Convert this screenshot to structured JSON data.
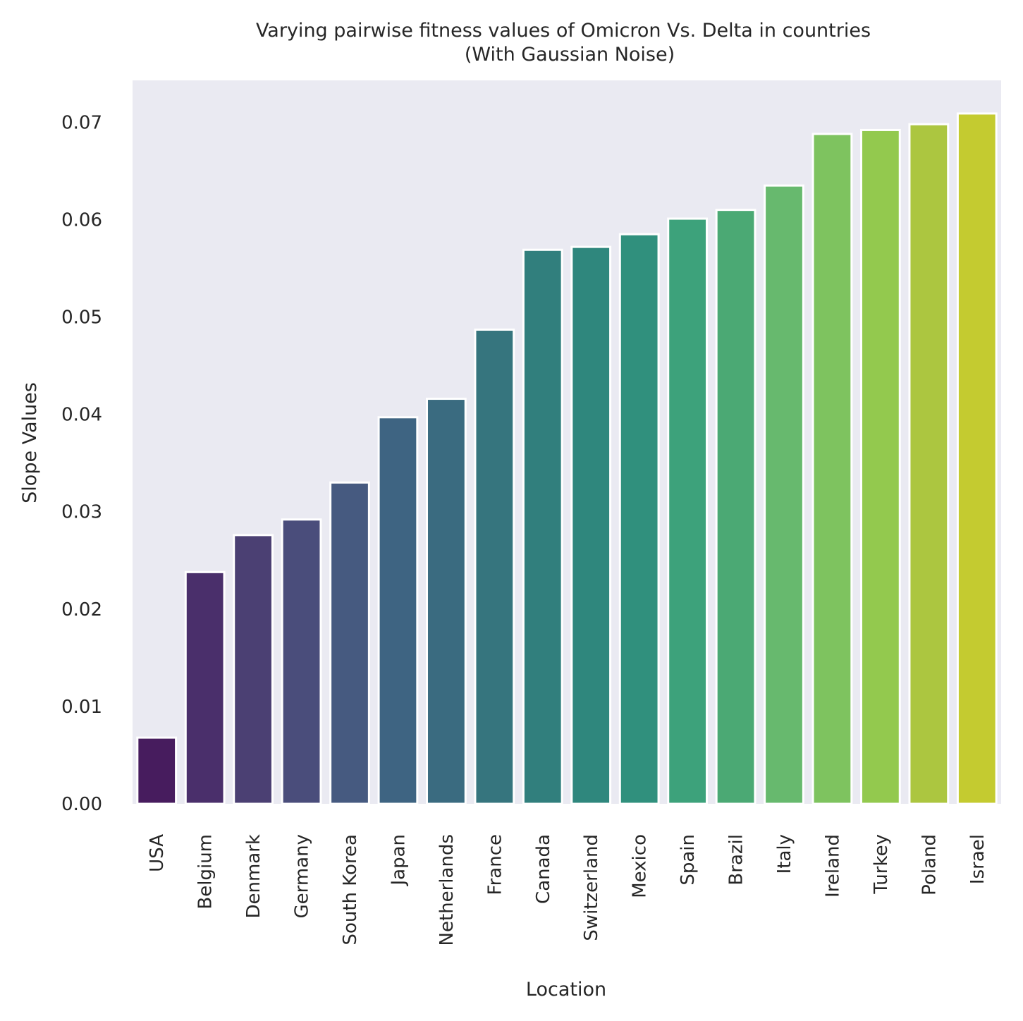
{
  "chart_data": {
    "type": "bar",
    "title": [
      "Varying pairwise fitness values of Omicron Vs. Delta in countries",
      "(With Gaussian Noise)"
    ],
    "xlabel": "Location",
    "ylabel": "Slope Values",
    "categories": [
      "USA",
      "Belgium",
      "Denmark",
      "Germany",
      "South Korea",
      "Japan",
      "Netherlands",
      "France",
      "Canada",
      "Switzerland",
      "Mexico",
      "Spain",
      "Brazil",
      "Italy",
      "Ireland",
      "Turkey",
      "Poland",
      "Israel"
    ],
    "values": [
      0.0068,
      0.0238,
      0.0276,
      0.0292,
      0.033,
      0.0397,
      0.0416,
      0.0487,
      0.0569,
      0.0572,
      0.0585,
      0.0601,
      0.061,
      0.0635,
      0.0688,
      0.0692,
      0.0698,
      0.0709
    ],
    "colors": [
      "#471c5e",
      "#4a2f6b",
      "#4b4073",
      "#4a4d7b",
      "#465a80",
      "#3e6482",
      "#3a6b80",
      "#36757e",
      "#317f7d",
      "#2f877d",
      "#30907d",
      "#3da27b",
      "#4ba974",
      "#67b96e",
      "#7ec35f",
      "#93c94e",
      "#acc640",
      "#c4cb30"
    ],
    "y_ticks": [
      "0.00",
      "0.01",
      "0.02",
      "0.03",
      "0.04",
      "0.05",
      "0.06",
      "0.07"
    ],
    "ylim": [
      0,
      0.0743
    ],
    "grid": false,
    "background": "#eaeaf2",
    "bar_edge_color": "#ffffff"
  }
}
